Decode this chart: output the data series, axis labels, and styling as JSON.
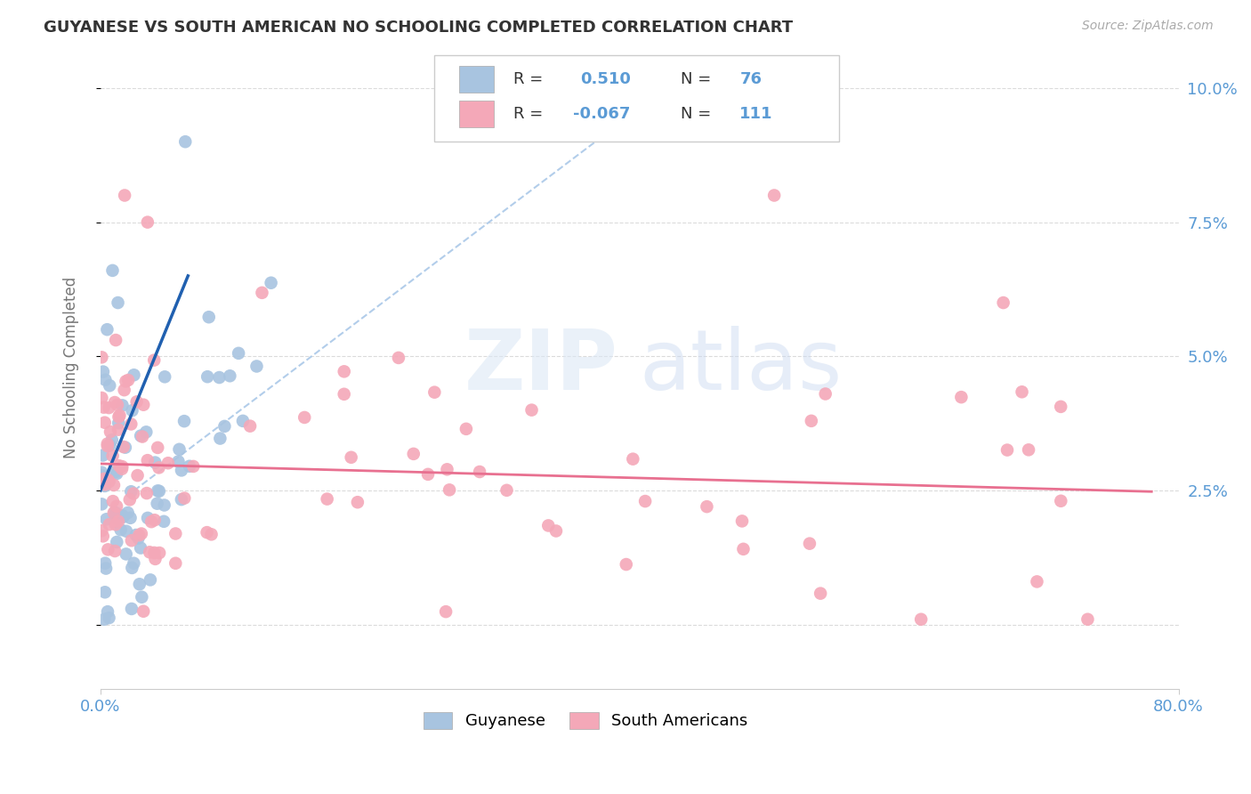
{
  "title": "GUYANESE VS SOUTH AMERICAN NO SCHOOLING COMPLETED CORRELATION CHART",
  "source": "Source: ZipAtlas.com",
  "ylabel": "No Schooling Completed",
  "watermark_zip": "ZIP",
  "watermark_atlas": "atlas",
  "xlim": [
    0.0,
    0.8
  ],
  "ylim": [
    -0.012,
    0.108
  ],
  "color_guyanese": "#a8c4e0",
  "color_south": "#f4a8b8",
  "color_title": "#333333",
  "color_axis_label": "#777777",
  "color_right_tick": "#5b9bd5",
  "color_bottom_tick": "#5b9bd5",
  "grid_color": "#cccccc",
  "trend_guyanese_color": "#2060b0",
  "trend_south_color": "#e87090",
  "diagonal_color": "#aac8e8",
  "background_color": "#ffffff",
  "legend_r_guy": "0.510",
  "legend_n_guy": "76",
  "legend_r_south": "-0.067",
  "legend_n_south": "111"
}
